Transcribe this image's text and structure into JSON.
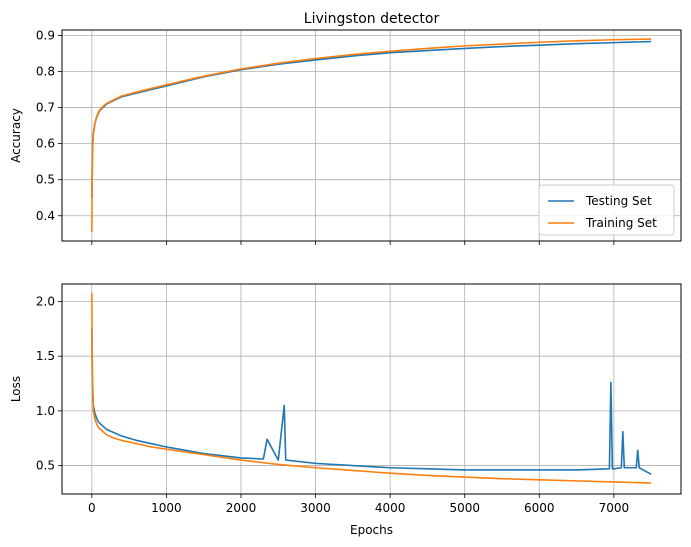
{
  "chart_data": [
    {
      "type": "line",
      "title": "Livingston detector",
      "ylabel": "Accuracy",
      "xlabel": "",
      "xlim": [
        -400,
        7900
      ],
      "ylim": [
        0.33,
        0.915
      ],
      "xticks": [
        0,
        1000,
        2000,
        3000,
        4000,
        5000,
        6000,
        7000
      ],
      "xtick_labels": [
        "",
        "",
        "",
        "",
        "",
        "",
        "",
        ""
      ],
      "yticks": [
        0.4,
        0.5,
        0.6,
        0.7,
        0.8,
        0.9
      ],
      "ytick_labels": [
        "0.4",
        "0.5",
        "0.6",
        "0.7",
        "0.8",
        "0.9"
      ],
      "grid": true,
      "legend": "lower right",
      "series": [
        {
          "name": "Testing Set",
          "color": "#1f77b4",
          "x": [
            0,
            5,
            10,
            20,
            40,
            60,
            80,
            100,
            150,
            200,
            300,
            400,
            600,
            800,
            1000,
            1500,
            2000,
            2500,
            3000,
            3500,
            4000,
            4500,
            5000,
            5500,
            6000,
            6500,
            7000,
            7500
          ],
          "y": [
            0.45,
            0.55,
            0.6,
            0.63,
            0.655,
            0.67,
            0.68,
            0.69,
            0.7,
            0.71,
            0.72,
            0.73,
            0.74,
            0.75,
            0.76,
            0.785,
            0.805,
            0.82,
            0.832,
            0.843,
            0.852,
            0.858,
            0.864,
            0.869,
            0.873,
            0.877,
            0.88,
            0.883
          ]
        },
        {
          "name": "Training Set",
          "color": "#ff7f0e",
          "x": [
            0,
            5,
            10,
            20,
            40,
            60,
            80,
            100,
            150,
            200,
            300,
            400,
            600,
            800,
            1000,
            1500,
            2000,
            2500,
            3000,
            3500,
            4000,
            4500,
            5000,
            5500,
            6000,
            6500,
            7000,
            7500
          ],
          "y": [
            0.355,
            0.5,
            0.58,
            0.625,
            0.655,
            0.672,
            0.683,
            0.692,
            0.703,
            0.712,
            0.722,
            0.732,
            0.743,
            0.753,
            0.763,
            0.787,
            0.807,
            0.823,
            0.836,
            0.847,
            0.856,
            0.864,
            0.871,
            0.876,
            0.881,
            0.885,
            0.888,
            0.89
          ]
        }
      ]
    },
    {
      "type": "line",
      "title": "",
      "ylabel": "Loss",
      "xlabel": "Epochs",
      "xlim": [
        -400,
        7900
      ],
      "ylim": [
        0.24,
        2.16
      ],
      "xticks": [
        0,
        1000,
        2000,
        3000,
        4000,
        5000,
        6000,
        7000
      ],
      "xtick_labels": [
        "0",
        "1000",
        "2000",
        "3000",
        "4000",
        "5000",
        "6000",
        "7000"
      ],
      "yticks": [
        0.5,
        1.0,
        1.5,
        2.0
      ],
      "ytick_labels": [
        "0.5",
        "1.0",
        "1.5",
        "2.0"
      ],
      "grid": true,
      "series": [
        {
          "name": "Testing Set",
          "color": "#1f77b4",
          "x": [
            0,
            5,
            10,
            20,
            40,
            60,
            80,
            100,
            150,
            200,
            300,
            400,
            600,
            800,
            1000,
            1500,
            2000,
            2300,
            2350,
            2500,
            2580,
            2600,
            3000,
            3500,
            4000,
            4500,
            5000,
            5500,
            6000,
            6500,
            6940,
            6960,
            6980,
            7000,
            7100,
            7120,
            7140,
            7300,
            7320,
            7340,
            7500
          ],
          "y": [
            1.75,
            1.35,
            1.25,
            1.05,
            0.98,
            0.94,
            0.91,
            0.89,
            0.86,
            0.83,
            0.8,
            0.77,
            0.73,
            0.7,
            0.67,
            0.61,
            0.57,
            0.56,
            0.74,
            0.55,
            1.05,
            0.55,
            0.52,
            0.5,
            0.48,
            0.47,
            0.46,
            0.46,
            0.46,
            0.46,
            0.47,
            1.26,
            0.47,
            0.47,
            0.48,
            0.81,
            0.48,
            0.48,
            0.64,
            0.48,
            0.42
          ]
        },
        {
          "name": "Training Set",
          "color": "#ff7f0e",
          "x": [
            0,
            5,
            10,
            20,
            40,
            60,
            80,
            100,
            150,
            200,
            300,
            400,
            600,
            800,
            1000,
            1500,
            2000,
            2500,
            3000,
            3500,
            4000,
            4500,
            5000,
            5500,
            6000,
            6500,
            7000,
            7500
          ],
          "y": [
            2.08,
            1.5,
            1.2,
            1.0,
            0.93,
            0.89,
            0.86,
            0.84,
            0.81,
            0.78,
            0.75,
            0.73,
            0.7,
            0.67,
            0.65,
            0.6,
            0.55,
            0.51,
            0.48,
            0.455,
            0.43,
            0.41,
            0.395,
            0.38,
            0.37,
            0.36,
            0.35,
            0.34
          ]
        }
      ]
    }
  ]
}
